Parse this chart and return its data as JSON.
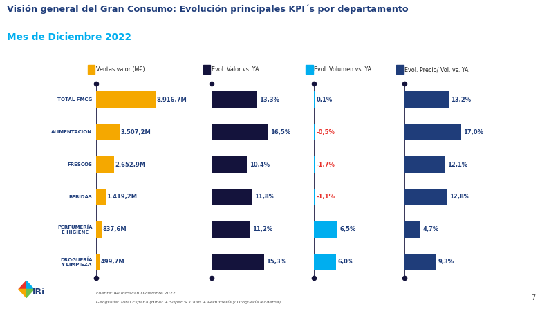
{
  "title_line1": "Visión general del Gran Consumo: Evolución principales KPI´s por departamento",
  "title_line2": "Mes de Diciembre 2022",
  "categories": [
    "TOTAL FMCG",
    "ALIMENTACIÓN",
    "FRESCOS",
    "BEBIDAS",
    "PERFUMERÍA\nE HIGIENE",
    "DROGUERÍA\nY LIMPIEZA"
  ],
  "ventas_values": [
    8916.7,
    3507.2,
    2652.9,
    1419.2,
    837.6,
    499.7
  ],
  "ventas_labels": [
    "8.916,7M",
    "3.507,2M",
    "2.652,9M",
    "1.419,2M",
    "837,6M",
    "499,7M"
  ],
  "evol_valor_values": [
    13.3,
    16.5,
    10.4,
    11.8,
    11.2,
    15.3
  ],
  "evol_valor_labels": [
    "13,3%",
    "16,5%",
    "10,4%",
    "11,8%",
    "11,2%",
    "15,3%"
  ],
  "evol_volumen_values": [
    0.1,
    -0.5,
    -1.7,
    -1.1,
    6.5,
    6.0
  ],
  "evol_volumen_labels": [
    "0,1%",
    "-0,5%",
    "-1,7%",
    "-1,1%",
    "6,5%",
    "6,0%"
  ],
  "evol_precio_values": [
    13.2,
    17.0,
    12.1,
    12.8,
    4.7,
    9.3
  ],
  "evol_precio_labels": [
    "13,2%",
    "17,0%",
    "12,1%",
    "12,8%",
    "4,7%",
    "9,3%"
  ],
  "color_ventas": "#F5A800",
  "color_evol_valor": "#14133C",
  "color_evol_volumen_pos": "#00AEEF",
  "color_evol_precio": "#1F3D7A",
  "color_title1": "#1F3D7A",
  "color_title2": "#00AEEF",
  "color_red": "#E8312B",
  "color_dark_label": "#1F3D7A",
  "legend_labels": [
    "Ventas valor (M€)",
    "Evol. Valor vs. YA",
    "Evol. Volumen vs. YA",
    "Evol. Precio/ Vol. vs. YA"
  ],
  "footnote_line1": "Fuente: IRI Infoscan Diciembre 2022",
  "footnote_line2": "Geografía: Total España (Hiper + Super > 100m + Perfumería y Droguería Moderna)"
}
